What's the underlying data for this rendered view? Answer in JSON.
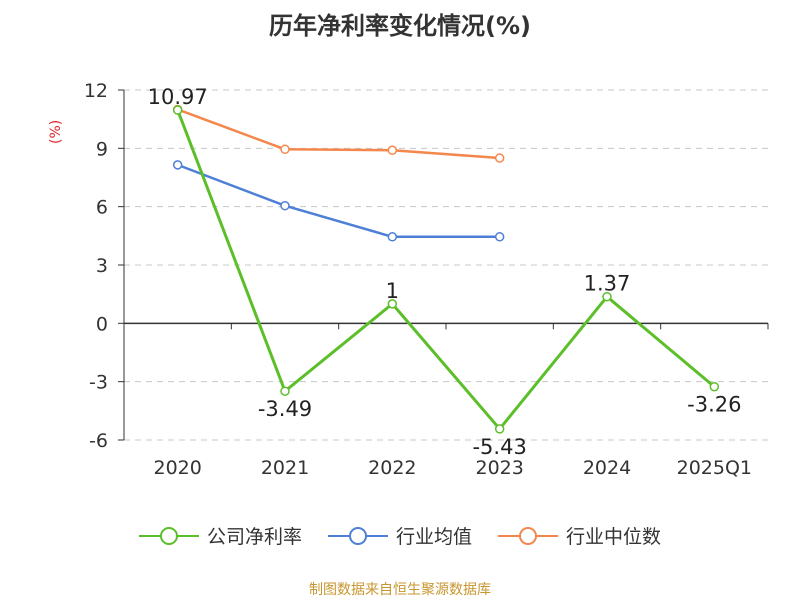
{
  "chart_data": {
    "type": "line",
    "title": "历年净利率变化情况(%)",
    "ylabel": "(%)",
    "categories": [
      "2020",
      "2021",
      "2022",
      "2023",
      "2024",
      "2025Q1"
    ],
    "ylim": [
      -6,
      12
    ],
    "yticks": [
      -6,
      -3,
      0,
      3,
      6,
      9,
      12
    ],
    "ytick_labels": [
      "-6",
      "-3",
      "0",
      "3",
      "6",
      "9",
      "12"
    ],
    "grid": true,
    "legend_position": "bottom",
    "series": [
      {
        "name": "公司净利率",
        "color": "#5cbf2a",
        "values": [
          10.97,
          -3.49,
          1,
          -5.43,
          1.37,
          -3.26
        ],
        "labels": [
          "10.97",
          "-3.49",
          "1",
          "-5.43",
          "1.37",
          "-3.26"
        ]
      },
      {
        "name": "行业均值",
        "color": "#4e7fd6",
        "values": [
          8.15,
          6.05,
          4.45,
          4.45,
          null,
          null
        ]
      },
      {
        "name": "行业中位数",
        "color": "#f4874b",
        "values": [
          11,
          8.95,
          8.9,
          8.5,
          null,
          null
        ]
      }
    ]
  },
  "footer": "制图数据来自恒生聚源数据库"
}
